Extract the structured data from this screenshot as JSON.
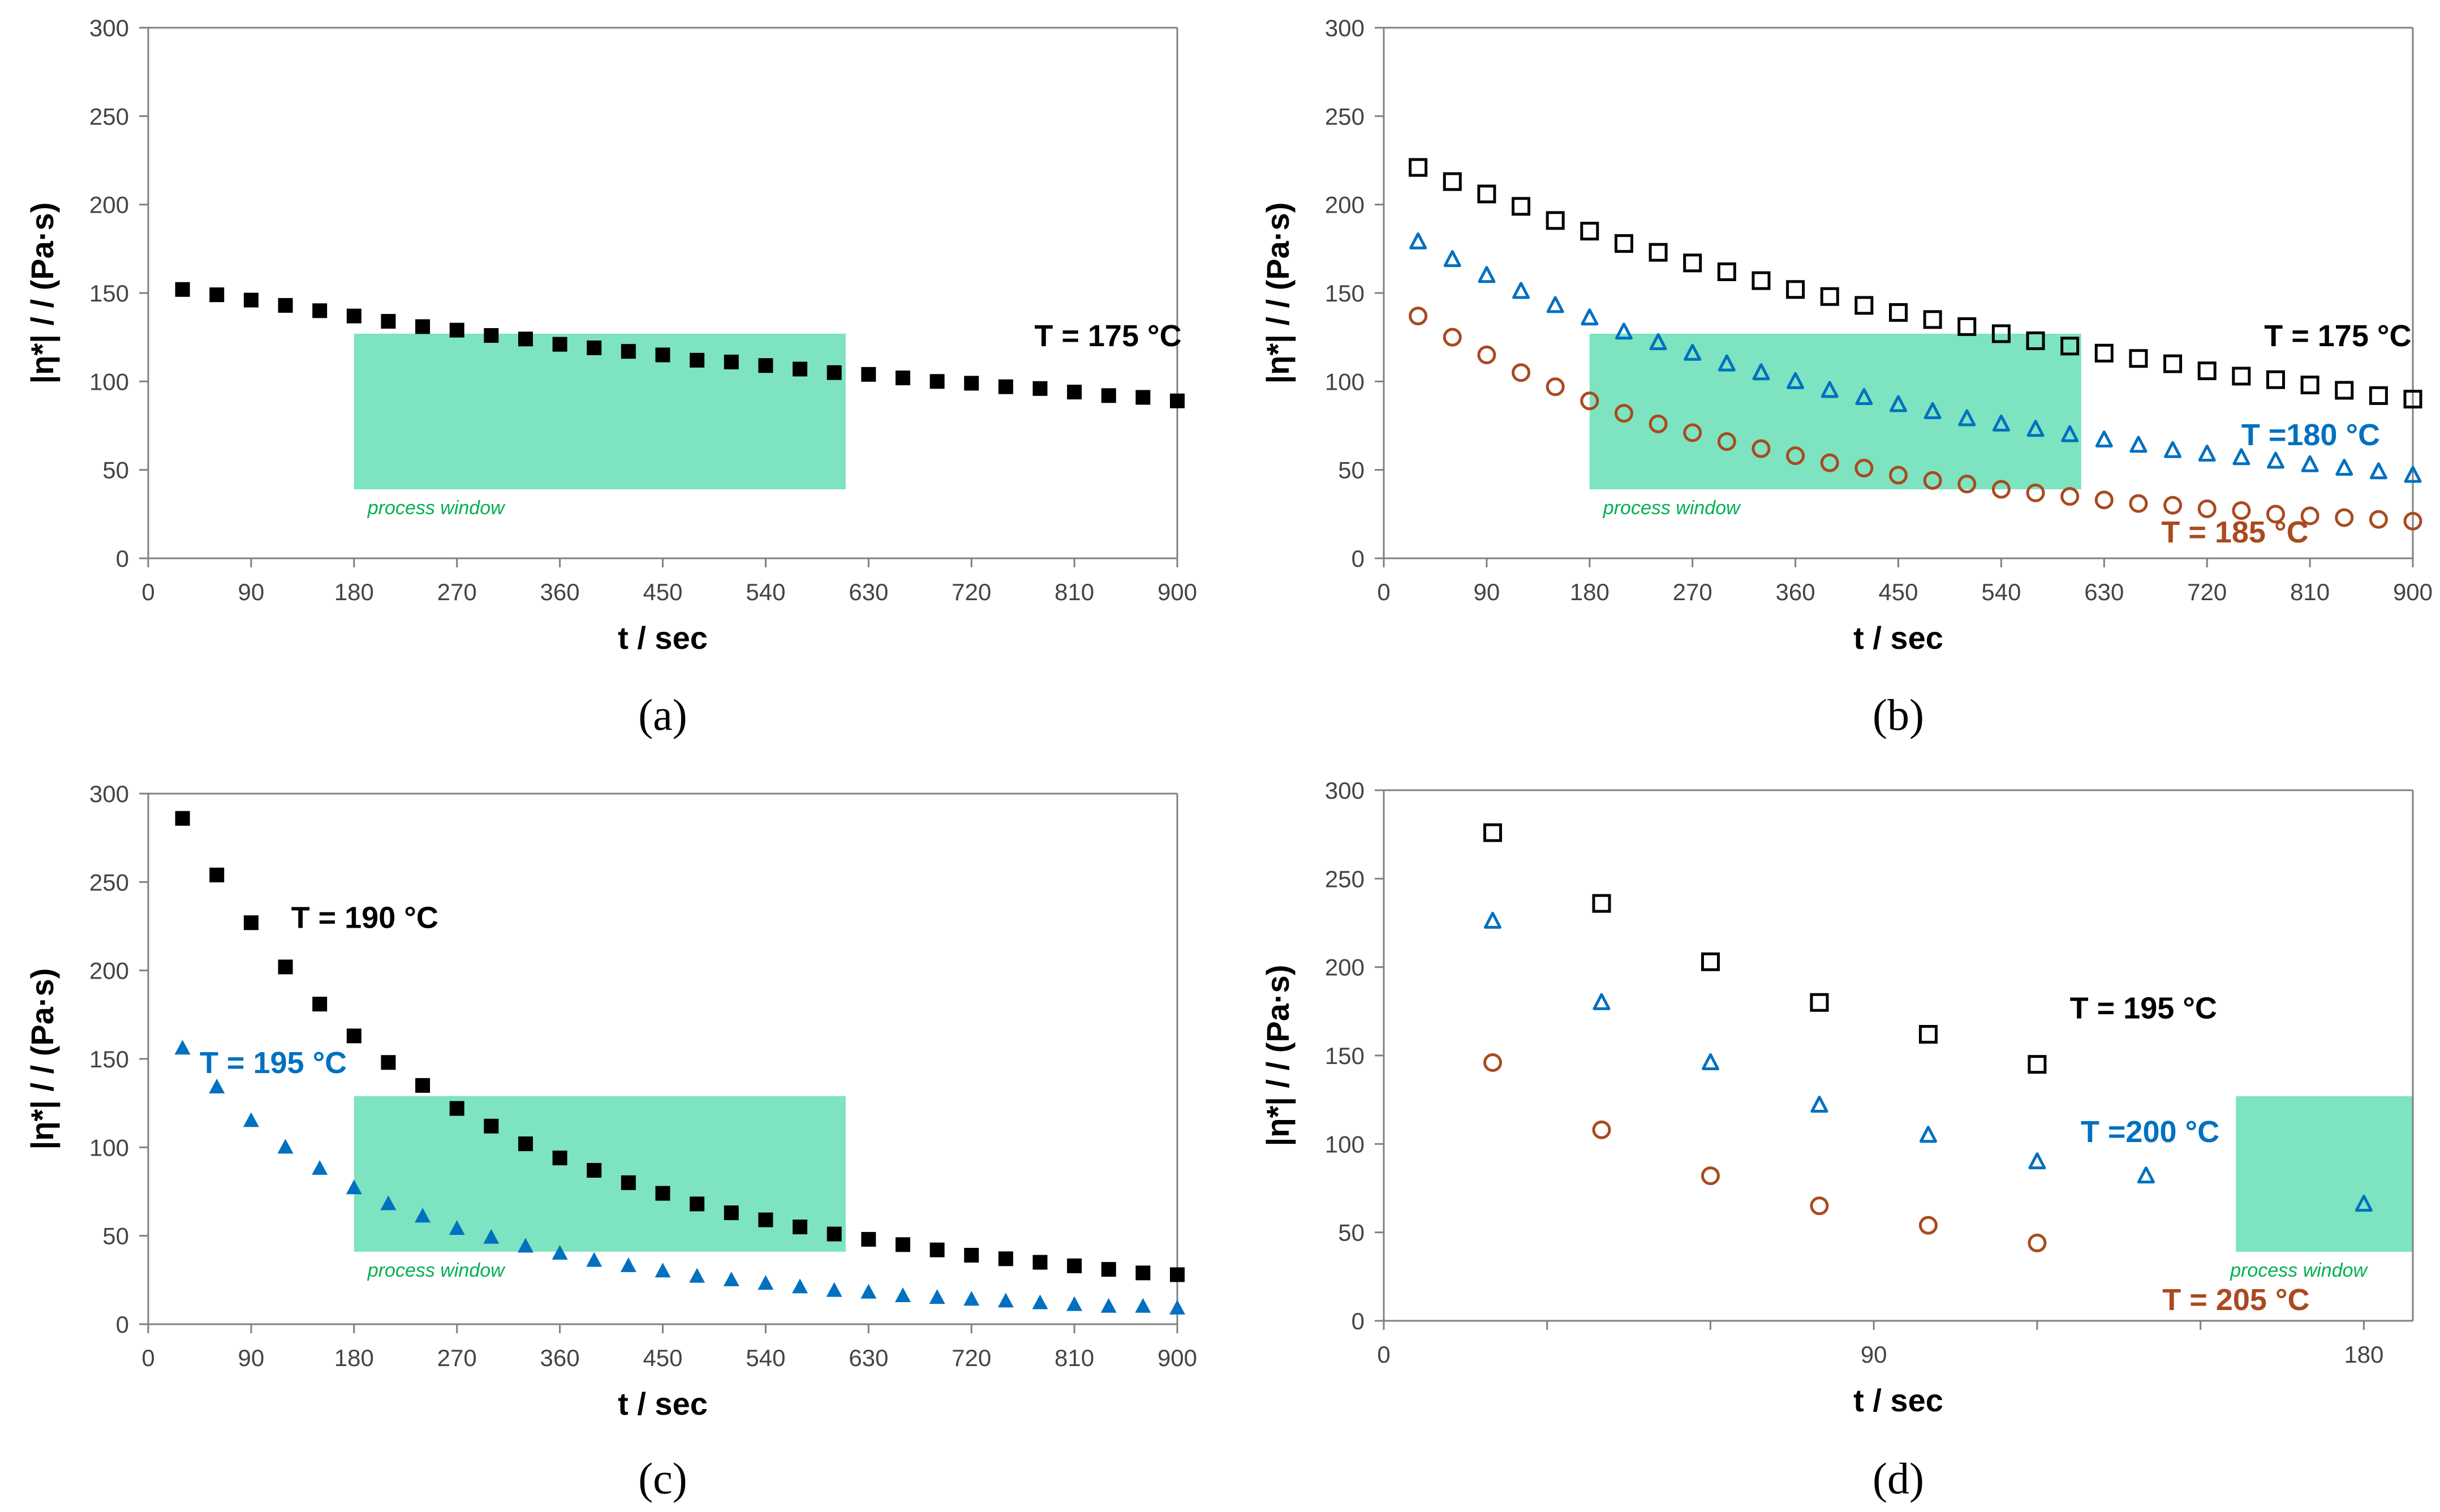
{
  "chart_data": [
    {
      "type": "scatter",
      "panel": "a",
      "caption": "(a)",
      "xlabel": "t / sec",
      "ylabel": "|η*| / / (Pa·s)",
      "xlim": [
        0,
        900
      ],
      "ylim": [
        0,
        300
      ],
      "xticks": [
        0,
        90,
        180,
        270,
        360,
        450,
        540,
        630,
        720,
        810,
        900
      ],
      "yticks": [
        0,
        50,
        100,
        150,
        200,
        250,
        300
      ],
      "process_window": {
        "label": "process window",
        "x": [
          180,
          610
        ],
        "y": [
          39,
          127
        ]
      },
      "series": [
        {
          "name": "T = 175 °C",
          "marker": "square-filled",
          "color": "#000000",
          "label_at": [
            775,
            120
          ],
          "x": [
            30,
            60,
            90,
            120,
            150,
            180,
            210,
            240,
            270,
            300,
            330,
            360,
            390,
            420,
            450,
            480,
            510,
            540,
            570,
            600,
            630,
            660,
            690,
            720,
            750,
            780,
            810,
            840,
            870,
            900
          ],
          "values": [
            152,
            149,
            146,
            143,
            140,
            137,
            134,
            131,
            129,
            126,
            124,
            121,
            119,
            117,
            115,
            112,
            111,
            109,
            107,
            105,
            104,
            102,
            100,
            99,
            97,
            96,
            94,
            92,
            91,
            89
          ]
        }
      ]
    },
    {
      "type": "scatter",
      "panel": "b",
      "caption": "(b)",
      "xlabel": "t / sec",
      "ylabel": "|η*| / / (Pa·s)",
      "xlim": [
        0,
        900
      ],
      "ylim": [
        0,
        300
      ],
      "xticks": [
        0,
        90,
        180,
        270,
        360,
        450,
        540,
        630,
        720,
        810,
        900
      ],
      "yticks": [
        0,
        50,
        100,
        150,
        200,
        250,
        300
      ],
      "process_window": {
        "label": "process window",
        "x": [
          180,
          610
        ],
        "y": [
          39,
          127
        ]
      },
      "series": [
        {
          "name": "T = 175 °C",
          "marker": "square-open",
          "color": "#000000",
          "label_at": [
            770,
            120
          ],
          "x": [
            30,
            60,
            90,
            120,
            150,
            180,
            210,
            240,
            270,
            300,
            330,
            360,
            390,
            420,
            450,
            480,
            510,
            540,
            570,
            600,
            630,
            660,
            690,
            720,
            750,
            780,
            810,
            840,
            870,
            900
          ],
          "values": [
            221,
            213,
            206,
            199,
            191,
            185,
            178,
            173,
            167,
            162,
            157,
            152,
            148,
            143,
            139,
            135,
            131,
            127,
            123,
            120,
            116,
            113,
            110,
            106,
            103,
            101,
            98,
            95,
            92,
            90
          ]
        },
        {
          "name": "T =180 °C",
          "marker": "triangle-open",
          "color": "#0070c0",
          "label_at": [
            750,
            64
          ],
          "x": [
            30,
            60,
            90,
            120,
            150,
            180,
            210,
            240,
            270,
            300,
            330,
            360,
            390,
            420,
            450,
            480,
            510,
            540,
            570,
            600,
            630,
            660,
            690,
            720,
            750,
            780,
            810,
            840,
            870,
            900
          ],
          "values": [
            179,
            169,
            160,
            151,
            143,
            136,
            128,
            122,
            116,
            110,
            105,
            100,
            95,
            91,
            87,
            83,
            79,
            76,
            73,
            70,
            67,
            64,
            61,
            59,
            57,
            55,
            53,
            51,
            49,
            47
          ]
        },
        {
          "name": "T = 185 °C",
          "marker": "circle-open",
          "color": "#a94a1e",
          "label_at": [
            680,
            9
          ],
          "x": [
            30,
            60,
            90,
            120,
            150,
            180,
            210,
            240,
            270,
            300,
            330,
            360,
            390,
            420,
            450,
            480,
            510,
            540,
            570,
            600,
            630,
            660,
            690,
            720,
            750,
            780,
            810,
            840,
            870,
            900
          ],
          "values": [
            137,
            125,
            115,
            105,
            97,
            89,
            82,
            76,
            71,
            66,
            62,
            58,
            54,
            51,
            47,
            44,
            42,
            39,
            37,
            35,
            33,
            31,
            30,
            28,
            27,
            25,
            24,
            23,
            22,
            21
          ]
        }
      ]
    },
    {
      "type": "scatter",
      "panel": "c",
      "caption": "(c)",
      "xlabel": "t / sec",
      "ylabel": "|η*| / / (Pa·s)",
      "xlim": [
        0,
        900
      ],
      "ylim": [
        0,
        300
      ],
      "xticks": [
        0,
        90,
        180,
        270,
        360,
        450,
        540,
        630,
        720,
        810,
        900
      ],
      "yticks": [
        0,
        50,
        100,
        150,
        200,
        250,
        300
      ],
      "process_window": {
        "label": "process window",
        "x": [
          180,
          610
        ],
        "y": [
          41,
          129
        ]
      },
      "series": [
        {
          "name": "T = 190 °C",
          "marker": "square-filled",
          "color": "#000000",
          "label_at": [
            125,
            224
          ],
          "x": [
            30,
            60,
            90,
            120,
            150,
            180,
            210,
            240,
            270,
            300,
            330,
            360,
            390,
            420,
            450,
            480,
            510,
            540,
            570,
            600,
            630,
            660,
            690,
            720,
            750,
            780,
            810,
            840,
            870,
            900
          ],
          "values": [
            286,
            254,
            227,
            202,
            181,
            163,
            148,
            135,
            122,
            112,
            102,
            94,
            87,
            80,
            74,
            68,
            63,
            59,
            55,
            51,
            48,
            45,
            42,
            39,
            37,
            35,
            33,
            31,
            29,
            28
          ]
        },
        {
          "name": "T = 195 °C",
          "marker": "triangle-filled",
          "color": "#0070c0",
          "label_at": [
            45,
            142
          ],
          "x": [
            30,
            60,
            90,
            120,
            150,
            180,
            210,
            240,
            270,
            300,
            330,
            360,
            390,
            420,
            450,
            480,
            510,
            540,
            570,
            600,
            630,
            660,
            690,
            720,
            750,
            780,
            810,
            840,
            870,
            900
          ],
          "values": [
            156,
            134,
            115,
            100,
            88,
            77,
            68,
            61,
            54,
            49,
            44,
            40,
            36,
            33,
            30,
            27,
            25,
            23,
            21,
            19,
            18,
            16,
            15,
            14,
            13,
            12,
            11,
            10,
            10,
            9
          ]
        }
      ]
    },
    {
      "type": "scatter",
      "panel": "d",
      "caption": "(d)",
      "xlabel": "t / sec",
      "ylabel": "|η*| / / (Pa·s)",
      "xlim": [
        0,
        189
      ],
      "ylim": [
        0,
        300
      ],
      "xticks": [
        0,
        90,
        180
      ],
      "minor_xticks": [
        30,
        60,
        120,
        150
      ],
      "yticks": [
        0,
        50,
        100,
        150,
        200,
        250,
        300
      ],
      "process_window": {
        "label": "process window",
        "x": [
          156.5,
          189
        ],
        "y": [
          39,
          127
        ]
      },
      "series": [
        {
          "name": "T = 195 °C",
          "marker": "square-open",
          "color": "#000000",
          "label_at": [
            126,
            171
          ],
          "x": [
            20,
            40,
            60,
            80,
            100,
            120
          ],
          "values": [
            276,
            236,
            203,
            180,
            162,
            145
          ]
        },
        {
          "name": "T =200 °C",
          "marker": "triangle-open",
          "color": "#0070c0",
          "label_at": [
            128,
            101
          ],
          "x": [
            20,
            40,
            60,
            80,
            100,
            120,
            140,
            180
          ],
          "values": [
            226,
            180,
            146,
            122,
            105,
            90,
            82,
            66
          ]
        },
        {
          "name": "T = 205 °C",
          "marker": "circle-open",
          "color": "#a94a1e",
          "label_at": [
            143,
            6
          ],
          "x": [
            20,
            40,
            60,
            80,
            100,
            120
          ],
          "values": [
            146,
            108,
            82,
            65,
            54,
            44
          ]
        }
      ]
    }
  ],
  "colors": {
    "process_window_fill": "#7de3c1",
    "process_window_text": "#00b050",
    "axis": "#808080"
  }
}
